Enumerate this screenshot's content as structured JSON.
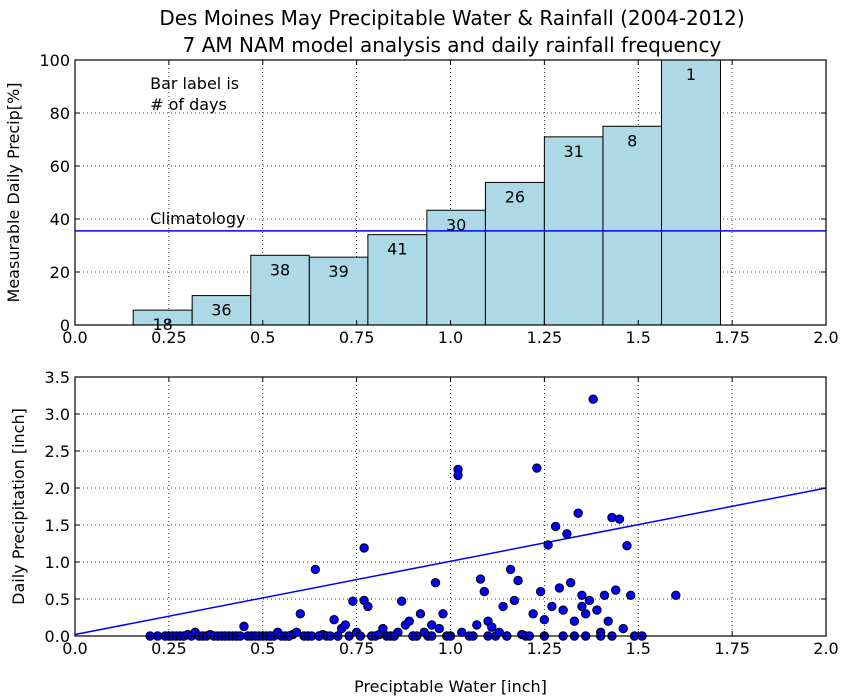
{
  "figure": {
    "title_line1": "Des Moines May Precipitable Water & Rainfall (2004-2012)",
    "title_line2": "7 AM NAM model analysis and daily rainfall frequency"
  },
  "chart_data": [
    {
      "type": "bar",
      "ylabel": "Measurable Daily Precip[%]",
      "xlim": [
        0.0,
        2.0
      ],
      "ylim": [
        0,
        100
      ],
      "xticks": [
        "0.0",
        "0.25",
        "0.5",
        "0.75",
        "1.0",
        "1.25",
        "1.5",
        "1.75",
        "2.0"
      ],
      "yticks": [
        "0",
        "20",
        "40",
        "60",
        "80",
        "100"
      ],
      "grid": true,
      "annotation": "Bar label is\n# of days",
      "bar_color": "#add8e6",
      "bars": [
        {
          "x0": 0.155,
          "x1": 0.312,
          "value": 5.6,
          "days": "18"
        },
        {
          "x0": 0.312,
          "x1": 0.468,
          "value": 11.1,
          "days": "36"
        },
        {
          "x0": 0.468,
          "x1": 0.624,
          "value": 26.3,
          "days": "38"
        },
        {
          "x0": 0.624,
          "x1": 0.78,
          "value": 25.6,
          "days": "39"
        },
        {
          "x0": 0.78,
          "x1": 0.937,
          "value": 34.1,
          "days": "41"
        },
        {
          "x0": 0.937,
          "x1": 1.093,
          "value": 43.3,
          "days": "30"
        },
        {
          "x0": 1.093,
          "x1": 1.25,
          "value": 53.8,
          "days": "26"
        },
        {
          "x0": 1.25,
          "x1": 1.406,
          "value": 71.0,
          "days": "31"
        },
        {
          "x0": 1.406,
          "x1": 1.562,
          "value": 75.0,
          "days": "8"
        },
        {
          "x0": 1.562,
          "x1": 1.719,
          "value": 100.0,
          "days": "1"
        }
      ],
      "climatology": {
        "label": "Climatology",
        "value": 35.5,
        "color": "#0000ff"
      }
    },
    {
      "type": "scatter",
      "xlabel": "Preciptable Water [inch]",
      "ylabel": "Daily Precipitation [inch]",
      "xlim": [
        0.0,
        2.0
      ],
      "ylim": [
        0.0,
        3.5
      ],
      "xticks": [
        "0.0",
        "0.25",
        "0.5",
        "0.75",
        "1.0",
        "1.25",
        "1.5",
        "1.75",
        "2.0"
      ],
      "yticks": [
        "0.0",
        "0.5",
        "1.0",
        "1.5",
        "2.0",
        "2.5",
        "3.0",
        "3.5"
      ],
      "grid": true,
      "point_color": "#0000ff",
      "fit_line": {
        "x": [
          0.0,
          2.0
        ],
        "y": [
          0.02,
          2.0
        ],
        "color": "#0000ff"
      },
      "points": [
        [
          0.2,
          0
        ],
        [
          0.22,
          0
        ],
        [
          0.24,
          0
        ],
        [
          0.25,
          0
        ],
        [
          0.26,
          0
        ],
        [
          0.27,
          0
        ],
        [
          0.28,
          0
        ],
        [
          0.29,
          0
        ],
        [
          0.3,
          0.02
        ],
        [
          0.31,
          0
        ],
        [
          0.32,
          0.05
        ],
        [
          0.33,
          0
        ],
        [
          0.34,
          0
        ],
        [
          0.35,
          0
        ],
        [
          0.36,
          0.02
        ],
        [
          0.37,
          0
        ],
        [
          0.38,
          0
        ],
        [
          0.39,
          0
        ],
        [
          0.4,
          0
        ],
        [
          0.41,
          0
        ],
        [
          0.42,
          0
        ],
        [
          0.43,
          0
        ],
        [
          0.44,
          0
        ],
        [
          0.45,
          0.13
        ],
        [
          0.46,
          0
        ],
        [
          0.47,
          0
        ],
        [
          0.48,
          0
        ],
        [
          0.49,
          0
        ],
        [
          0.5,
          0
        ],
        [
          0.51,
          0
        ],
        [
          0.52,
          0
        ],
        [
          0.53,
          0
        ],
        [
          0.54,
          0.05
        ],
        [
          0.55,
          0
        ],
        [
          0.56,
          0
        ],
        [
          0.57,
          0
        ],
        [
          0.58,
          0.02
        ],
        [
          0.59,
          0.05
        ],
        [
          0.6,
          0.3
        ],
        [
          0.61,
          0
        ],
        [
          0.62,
          0
        ],
        [
          0.63,
          0
        ],
        [
          0.64,
          0.9
        ],
        [
          0.65,
          0
        ],
        [
          0.66,
          0.02
        ],
        [
          0.67,
          0
        ],
        [
          0.68,
          0
        ],
        [
          0.69,
          0.22
        ],
        [
          0.7,
          0
        ],
        [
          0.71,
          0.1
        ],
        [
          0.72,
          0.15
        ],
        [
          0.73,
          0
        ],
        [
          0.74,
          0.47
        ],
        [
          0.75,
          0.05
        ],
        [
          0.76,
          0
        ],
        [
          0.77,
          1.19
        ],
        [
          0.77,
          0.48
        ],
        [
          0.78,
          0.4
        ],
        [
          0.79,
          0
        ],
        [
          0.8,
          0
        ],
        [
          0.81,
          0.02
        ],
        [
          0.82,
          0.1
        ],
        [
          0.83,
          0
        ],
        [
          0.84,
          0
        ],
        [
          0.85,
          0
        ],
        [
          0.86,
          0.05
        ],
        [
          0.87,
          0.47
        ],
        [
          0.88,
          0.15
        ],
        [
          0.89,
          0.2
        ],
        [
          0.9,
          0
        ],
        [
          0.91,
          0
        ],
        [
          0.92,
          0.3
        ],
        [
          0.93,
          0.05
        ],
        [
          0.94,
          0
        ],
        [
          0.95,
          0.15
        ],
        [
          0.96,
          0.72
        ],
        [
          0.97,
          0.1
        ],
        [
          0.98,
          0.3
        ],
        [
          0.99,
          0
        ],
        [
          1.0,
          0
        ],
        [
          1.02,
          2.25
        ],
        [
          1.02,
          2.17
        ],
        [
          1.03,
          0.05
        ],
        [
          1.05,
          0
        ],
        [
          1.06,
          0
        ],
        [
          1.07,
          0.15
        ],
        [
          1.08,
          0.77
        ],
        [
          1.09,
          0.6
        ],
        [
          1.1,
          0.2
        ],
        [
          1.11,
          0.12
        ],
        [
          1.12,
          0
        ],
        [
          1.13,
          0.05
        ],
        [
          1.14,
          0.4
        ],
        [
          1.15,
          0
        ],
        [
          1.16,
          0.9
        ],
        [
          1.17,
          0.48
        ],
        [
          1.18,
          0.75
        ],
        [
          1.19,
          0.02
        ],
        [
          1.2,
          0
        ],
        [
          1.21,
          0
        ],
        [
          1.22,
          0.3
        ],
        [
          1.23,
          2.27
        ],
        [
          1.24,
          0.6
        ],
        [
          1.25,
          0.22
        ],
        [
          1.26,
          1.23
        ],
        [
          1.27,
          0.4
        ],
        [
          1.28,
          1.48
        ],
        [
          1.29,
          0.65
        ],
        [
          1.3,
          0.35
        ],
        [
          1.31,
          1.38
        ],
        [
          1.32,
          0.72
        ],
        [
          1.33,
          0.2
        ],
        [
          1.34,
          1.66
        ],
        [
          1.35,
          0.55
        ],
        [
          1.35,
          0.4
        ],
        [
          1.36,
          0.3
        ],
        [
          1.37,
          0.48
        ],
        [
          1.38,
          3.2
        ],
        [
          1.39,
          0.35
        ],
        [
          1.4,
          0.05
        ],
        [
          1.41,
          0.55
        ],
        [
          1.42,
          0.2
        ],
        [
          1.43,
          1.6
        ],
        [
          1.44,
          0.62
        ],
        [
          1.45,
          1.58
        ],
        [
          1.46,
          0.1
        ],
        [
          1.47,
          1.22
        ],
        [
          1.48,
          0.55
        ],
        [
          1.49,
          0
        ],
        [
          1.51,
          0
        ],
        [
          1.6,
          0.55
        ],
        [
          1.1,
          0
        ],
        [
          1.15,
          0
        ],
        [
          1.25,
          0
        ],
        [
          1.3,
          0
        ],
        [
          1.33,
          0
        ],
        [
          1.36,
          0
        ],
        [
          1.4,
          0
        ],
        [
          1.43,
          0
        ],
        [
          0.95,
          0
        ],
        [
          0.9,
          0
        ],
        [
          0.85,
          0
        ],
        [
          0.7,
          0
        ],
        [
          0.65,
          0
        ],
        [
          0.57,
          0
        ],
        [
          0.52,
          0
        ]
      ]
    }
  ]
}
